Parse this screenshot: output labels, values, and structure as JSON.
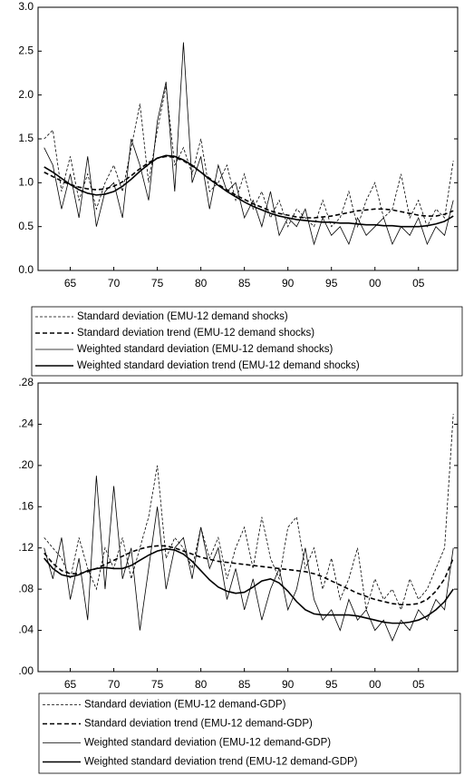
{
  "chart_data": [
    {
      "type": "line",
      "x": [
        1962,
        1963,
        1964,
        1965,
        1966,
        1967,
        1968,
        1969,
        1970,
        1971,
        1972,
        1973,
        1974,
        1975,
        1976,
        1977,
        1978,
        1979,
        1980,
        1981,
        1982,
        1983,
        1984,
        1985,
        1986,
        1987,
        1988,
        1989,
        1990,
        1991,
        1992,
        1993,
        1994,
        1995,
        1996,
        1997,
        1998,
        1999,
        2000,
        2001,
        2002,
        2003,
        2004,
        2005,
        2006,
        2007,
        2008,
        2009
      ],
      "xlim": [
        1961.3,
        2009.5
      ],
      "xticks": [
        {
          "value": 1965,
          "label": "65"
        },
        {
          "value": 1970,
          "label": "70"
        },
        {
          "value": 1975,
          "label": "75"
        },
        {
          "value": 1980,
          "label": "80"
        },
        {
          "value": 1985,
          "label": "85"
        },
        {
          "value": 1990,
          "label": "90"
        },
        {
          "value": 1995,
          "label": "95"
        },
        {
          "value": 2000,
          "label": "00"
        },
        {
          "value": 2005,
          "label": "05"
        }
      ],
      "ylim": [
        0,
        3
      ],
      "yticks": [
        {
          "value": 0,
          "label": "0.0"
        },
        0.5,
        {
          "value": 1,
          "label": "1.0"
        },
        1.5,
        {
          "value": 2,
          "label": "2.0"
        },
        2.5,
        {
          "value": 3,
          "label": "3.0"
        }
      ],
      "series": [
        {
          "name": "Standard deviation (EMU-12 demand shocks)",
          "color": "#000000",
          "line_style": "dashed",
          "line_weight": "thin",
          "values": [
            1.5,
            1.6,
            0.9,
            1.3,
            0.8,
            1.1,
            0.7,
            1.0,
            1.2,
            0.9,
            1.4,
            1.9,
            1.0,
            1.6,
            2.1,
            1.2,
            1.4,
            1.1,
            1.5,
            0.9,
            1.0,
            1.2,
            0.8,
            1.1,
            0.7,
            0.9,
            0.6,
            0.8,
            0.5,
            0.7,
            0.6,
            0.5,
            0.8,
            0.5,
            0.6,
            0.9,
            0.5,
            0.8,
            1.0,
            0.6,
            0.7,
            1.1,
            0.6,
            0.8,
            0.5,
            0.7,
            0.6,
            1.25
          ]
        },
        {
          "name": "Standard deviation trend (EMU-12 demand shocks)",
          "color": "#000000",
          "line_style": "dashed",
          "line_weight": "thick",
          "values": [
            1.12,
            1.07,
            1.02,
            0.98,
            0.95,
            0.93,
            0.92,
            0.93,
            0.96,
            1.01,
            1.08,
            1.16,
            1.23,
            1.28,
            1.3,
            1.29,
            1.25,
            1.19,
            1.12,
            1.05,
            0.98,
            0.92,
            0.86,
            0.81,
            0.76,
            0.72,
            0.68,
            0.65,
            0.63,
            0.61,
            0.6,
            0.6,
            0.61,
            0.62,
            0.64,
            0.66,
            0.68,
            0.69,
            0.7,
            0.7,
            0.69,
            0.67,
            0.65,
            0.63,
            0.62,
            0.62,
            0.64,
            0.68
          ]
        },
        {
          "name": "Weighted standard deviation (EMU-12 demand shocks)",
          "color": "#000000",
          "line_style": "solid",
          "line_weight": "thin",
          "values": [
            1.4,
            1.2,
            0.7,
            1.1,
            0.6,
            1.3,
            0.5,
            0.9,
            1.0,
            0.6,
            1.5,
            1.2,
            0.8,
            1.7,
            2.15,
            0.9,
            2.6,
            1.0,
            1.3,
            0.7,
            1.2,
            0.9,
            1.0,
            0.6,
            0.8,
            0.5,
            0.9,
            0.4,
            0.6,
            0.5,
            0.7,
            0.3,
            0.6,
            0.4,
            0.5,
            0.3,
            0.6,
            0.4,
            0.5,
            0.6,
            0.3,
            0.5,
            0.4,
            0.6,
            0.3,
            0.5,
            0.4,
            0.8
          ]
        },
        {
          "name": "Weighted standard deviation trend (EMU-12 demand shocks)",
          "color": "#000000",
          "line_style": "solid",
          "line_weight": "thick",
          "values": [
            1.18,
            1.12,
            1.05,
            0.98,
            0.92,
            0.88,
            0.86,
            0.87,
            0.9,
            0.96,
            1.04,
            1.13,
            1.21,
            1.28,
            1.31,
            1.3,
            1.26,
            1.2,
            1.12,
            1.04,
            0.97,
            0.9,
            0.84,
            0.78,
            0.73,
            0.69,
            0.65,
            0.62,
            0.6,
            0.58,
            0.57,
            0.56,
            0.55,
            0.55,
            0.54,
            0.54,
            0.53,
            0.52,
            0.52,
            0.51,
            0.51,
            0.5,
            0.5,
            0.5,
            0.51,
            0.53,
            0.56,
            0.62
          ]
        }
      ]
    },
    {
      "type": "line",
      "x": [
        1962,
        1963,
        1964,
        1965,
        1966,
        1967,
        1968,
        1969,
        1970,
        1971,
        1972,
        1973,
        1974,
        1975,
        1976,
        1977,
        1978,
        1979,
        1980,
        1981,
        1982,
        1983,
        1984,
        1985,
        1986,
        1987,
        1988,
        1989,
        1990,
        1991,
        1992,
        1993,
        1994,
        1995,
        1996,
        1997,
        1998,
        1999,
        2000,
        2001,
        2002,
        2003,
        2004,
        2005,
        2006,
        2007,
        2008,
        2009
      ],
      "xlim": [
        1961.3,
        2009.5
      ],
      "xticks": [
        {
          "value": 1965,
          "label": "65"
        },
        {
          "value": 1970,
          "label": "70"
        },
        {
          "value": 1975,
          "label": "75"
        },
        {
          "value": 1980,
          "label": "80"
        },
        {
          "value": 1985,
          "label": "85"
        },
        {
          "value": 1990,
          "label": "90"
        },
        {
          "value": 1995,
          "label": "95"
        },
        {
          "value": 2000,
          "label": "00"
        },
        {
          "value": 2005,
          "label": "05"
        }
      ],
      "ylim": [
        0,
        0.28
      ],
      "yticks": [
        {
          "value": 0,
          "label": ".00"
        },
        {
          "value": 0.04,
          "label": ".04"
        },
        {
          "value": 0.08,
          "label": ".08"
        },
        {
          "value": 0.12,
          "label": ".12"
        },
        {
          "value": 0.16,
          "label": ".16"
        },
        {
          "value": 0.2,
          "label": ".20"
        },
        {
          "value": 0.24,
          "label": ".24"
        },
        {
          "value": 0.28,
          "label": ".28"
        }
      ],
      "series": [
        {
          "name": "Standard deviation (EMU-12 demand-GDP)",
          "color": "#000000",
          "line_style": "dashed",
          "line_weight": "thin",
          "values": [
            0.13,
            0.12,
            0.11,
            0.09,
            0.13,
            0.1,
            0.08,
            0.12,
            0.1,
            0.13,
            0.09,
            0.12,
            0.15,
            0.2,
            0.11,
            0.13,
            0.12,
            0.1,
            0.14,
            0.11,
            0.13,
            0.09,
            0.12,
            0.14,
            0.1,
            0.15,
            0.11,
            0.09,
            0.14,
            0.15,
            0.1,
            0.12,
            0.08,
            0.11,
            0.07,
            0.09,
            0.12,
            0.06,
            0.09,
            0.07,
            0.08,
            0.06,
            0.09,
            0.07,
            0.08,
            0.1,
            0.12,
            0.25
          ]
        },
        {
          "name": "Standard deviation trend (EMU-12 demand-GDP)",
          "color": "#000000",
          "line_style": "dashed",
          "line_weight": "thick",
          "values": [
            0.115,
            0.105,
            0.098,
            0.095,
            0.095,
            0.097,
            0.1,
            0.104,
            0.108,
            0.112,
            0.116,
            0.119,
            0.121,
            0.122,
            0.122,
            0.12,
            0.117,
            0.114,
            0.111,
            0.109,
            0.107,
            0.106,
            0.105,
            0.104,
            0.103,
            0.102,
            0.101,
            0.1,
            0.099,
            0.098,
            0.097,
            0.095,
            0.092,
            0.088,
            0.084,
            0.08,
            0.076,
            0.073,
            0.07,
            0.068,
            0.066,
            0.065,
            0.065,
            0.066,
            0.07,
            0.078,
            0.09,
            0.11
          ]
        },
        {
          "name": "Weighted standard deviation (EMU-12 demand-GDP)",
          "color": "#000000",
          "line_style": "solid",
          "line_weight": "thin",
          "values": [
            0.12,
            0.09,
            0.13,
            0.07,
            0.11,
            0.05,
            0.19,
            0.08,
            0.18,
            0.09,
            0.12,
            0.04,
            0.1,
            0.16,
            0.08,
            0.12,
            0.13,
            0.09,
            0.14,
            0.1,
            0.12,
            0.07,
            0.1,
            0.06,
            0.09,
            0.05,
            0.08,
            0.1,
            0.06,
            0.08,
            0.12,
            0.07,
            0.05,
            0.06,
            0.04,
            0.07,
            0.05,
            0.06,
            0.04,
            0.05,
            0.03,
            0.05,
            0.04,
            0.06,
            0.05,
            0.07,
            0.06,
            0.12
          ]
        },
        {
          "name": "Weighted standard deviation trend (EMU-12 demand-GDP)",
          "color": "#000000",
          "line_style": "solid",
          "line_weight": "thick",
          "values": [
            0.11,
            0.1,
            0.094,
            0.092,
            0.094,
            0.098,
            0.1,
            0.101,
            0.1,
            0.1,
            0.103,
            0.108,
            0.113,
            0.117,
            0.119,
            0.118,
            0.114,
            0.107,
            0.098,
            0.089,
            0.082,
            0.078,
            0.076,
            0.077,
            0.082,
            0.088,
            0.09,
            0.086,
            0.078,
            0.068,
            0.06,
            0.056,
            0.055,
            0.055,
            0.055,
            0.055,
            0.054,
            0.052,
            0.05,
            0.048,
            0.047,
            0.047,
            0.048,
            0.05,
            0.054,
            0.06,
            0.068,
            0.08
          ]
        }
      ]
    }
  ]
}
